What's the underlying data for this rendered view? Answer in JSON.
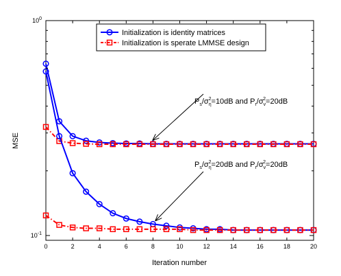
{
  "chart_data": {
    "type": "line",
    "xlabel": "Iteration number",
    "ylabel": "MSE",
    "xlim": [
      0,
      20
    ],
    "ylim": [
      0.095,
      1.0
    ],
    "yscale": "log",
    "x_ticks": [
      0,
      2,
      4,
      6,
      8,
      10,
      12,
      14,
      16,
      18,
      20
    ],
    "x_tick_labels": [
      "0",
      "2",
      "4",
      "6",
      "8",
      "10",
      "12",
      "14",
      "16",
      "18",
      "20"
    ],
    "y_ticks": [
      1.0,
      0.1
    ],
    "y_tick_labels": [
      {
        "base": "10",
        "exp": "0"
      },
      {
        "base": "10",
        "exp": "-1"
      }
    ],
    "grid": false,
    "legend_position": "top-center",
    "x": [
      0,
      1,
      2,
      3,
      4,
      5,
      6,
      7,
      8,
      9,
      10,
      11,
      12,
      13,
      14,
      15,
      16,
      17,
      18,
      19,
      20
    ],
    "series": [
      {
        "name": "Initialization is identity matrices",
        "style": "blue-solid-circle",
        "color": "#0000ff",
        "values": [
          0.63,
          0.34,
          0.29,
          0.276,
          0.271,
          0.269,
          0.268,
          0.268,
          0.267,
          0.267,
          0.267,
          0.267,
          0.267,
          0.267,
          0.267,
          0.267,
          0.267,
          0.267,
          0.267,
          0.267,
          0.267
        ]
      },
      {
        "name": "Initialization is sperate LMMSE design",
        "style": "red-dashdot-square",
        "color": "#ff0000",
        "values": [
          0.32,
          0.275,
          0.269,
          0.267,
          0.266,
          0.266,
          0.266,
          0.266,
          0.266,
          0.266,
          0.266,
          0.266,
          0.266,
          0.266,
          0.266,
          0.266,
          0.266,
          0.266,
          0.266,
          0.266,
          0.266
        ]
      },
      {
        "name": "",
        "style": "blue-solid-circle",
        "color": "#0000ff",
        "values": [
          0.58,
          0.29,
          0.195,
          0.16,
          0.14,
          0.127,
          0.12,
          0.116,
          0.113,
          0.111,
          0.109,
          0.108,
          0.107,
          0.107,
          0.106,
          0.106,
          0.106,
          0.106,
          0.106,
          0.106,
          0.106
        ]
      },
      {
        "name": "",
        "style": "red-dashdot-square",
        "color": "#ff0000",
        "values": [
          0.124,
          0.112,
          0.109,
          0.108,
          0.108,
          0.107,
          0.107,
          0.107,
          0.107,
          0.107,
          0.107,
          0.106,
          0.106,
          0.106,
          0.106,
          0.106,
          0.106,
          0.106,
          0.106,
          0.106,
          0.106
        ]
      }
    ],
    "annotations": [
      {
        "name": "high-sigma-annotation",
        "parts": [
          {
            "t": "P",
            "s": "base"
          },
          {
            "t": "s",
            "s": "sub"
          },
          {
            "t": "/σ",
            "s": "base"
          },
          {
            "t": "η",
            "s": "sub"
          },
          {
            "t": "2",
            "s": "sup"
          },
          {
            "t": "=10dB and P",
            "s": "base"
          },
          {
            "t": "r",
            "s": "sub"
          },
          {
            "t": "/σ",
            "s": "base"
          },
          {
            "t": "v",
            "s": "sub"
          },
          {
            "t": "2",
            "s": "sup"
          },
          {
            "t": "=20dB",
            "s": "base"
          }
        ],
        "arrow_to": [
          8,
          0.268
        ]
      },
      {
        "name": "low-sigma-annotation",
        "parts": [
          {
            "t": "P",
            "s": "base"
          },
          {
            "t": "s",
            "s": "sub"
          },
          {
            "t": "/σ",
            "s": "base"
          },
          {
            "t": "η",
            "s": "sub"
          },
          {
            "t": "2",
            "s": "sup"
          },
          {
            "t": "=20dB and P",
            "s": "base"
          },
          {
            "t": "r",
            "s": "sub"
          },
          {
            "t": "/σ",
            "s": "base"
          },
          {
            "t": "v",
            "s": "sub"
          },
          {
            "t": "2",
            "s": "sup"
          },
          {
            "t": "=20dB",
            "s": "base"
          }
        ],
        "arrow_to": [
          8.2,
          0.114
        ]
      }
    ]
  }
}
